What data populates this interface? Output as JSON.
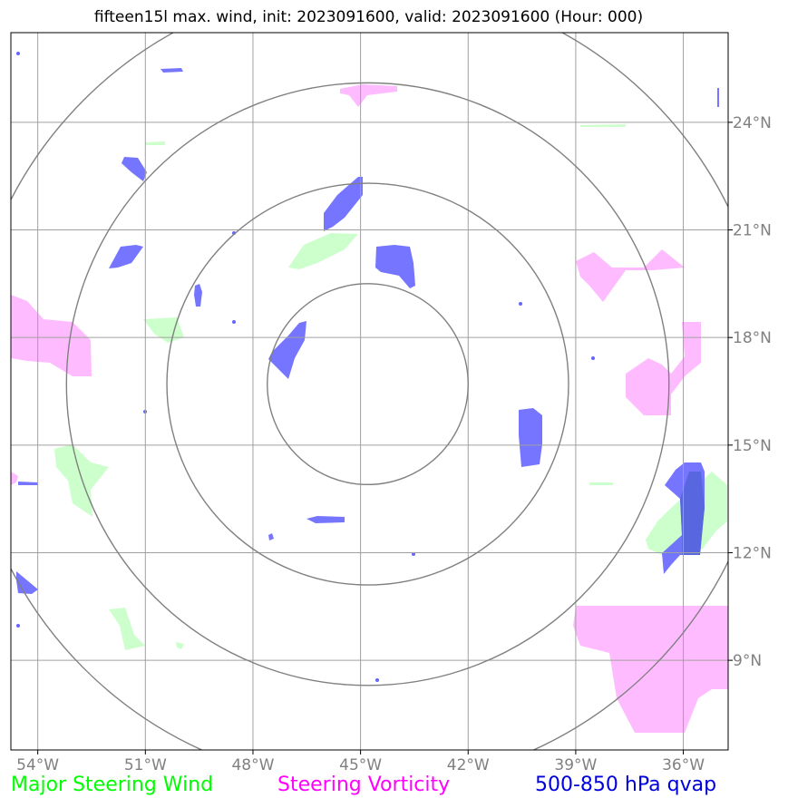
{
  "title": "fifteen15l max. wind, init: 2023091600, valid: 2023091600 (Hour: 000)",
  "map": {
    "lon_range": [
      -54.75,
      -34.75
    ],
    "lat_range": [
      6.5,
      26.5
    ],
    "lon_ticks": [
      {
        "value": -54,
        "label": "54°W"
      },
      {
        "value": -51,
        "label": "51°W"
      },
      {
        "value": -48,
        "label": "48°W"
      },
      {
        "value": -45,
        "label": "45°W"
      },
      {
        "value": -42,
        "label": "42°W"
      },
      {
        "value": -39,
        "label": "39°W"
      },
      {
        "value": -36,
        "label": "36°W"
      }
    ],
    "lat_ticks": [
      {
        "value": 24,
        "label": "24°N"
      },
      {
        "value": 21,
        "label": "21°N"
      },
      {
        "value": 18,
        "label": "18°N"
      },
      {
        "value": 15,
        "label": "15°N"
      },
      {
        "value": 12,
        "label": "12°N"
      },
      {
        "value": 9,
        "label": "9°N"
      }
    ],
    "grid_color": "#a0a0a0",
    "range_ring_color": "#808080",
    "range_ring_center": {
      "lon": -44.8,
      "lat": 16.7
    },
    "range_ring_radius_deg": [
      2.8,
      5.6,
      8.4,
      11.2
    ],
    "colors": {
      "steering_wind": "#ccffcc",
      "steering_vorticity": "#ffbbff",
      "qvap": "#6666ff",
      "qvap_dark": "#5566dd"
    }
  },
  "legend": [
    {
      "label": "Major Steering Wind",
      "color": "#00ff00"
    },
    {
      "label": "Steering Vorticity",
      "color": "#ff00ff"
    },
    {
      "label": "500-850 hPa qvap",
      "color": "#0000dd"
    }
  ]
}
